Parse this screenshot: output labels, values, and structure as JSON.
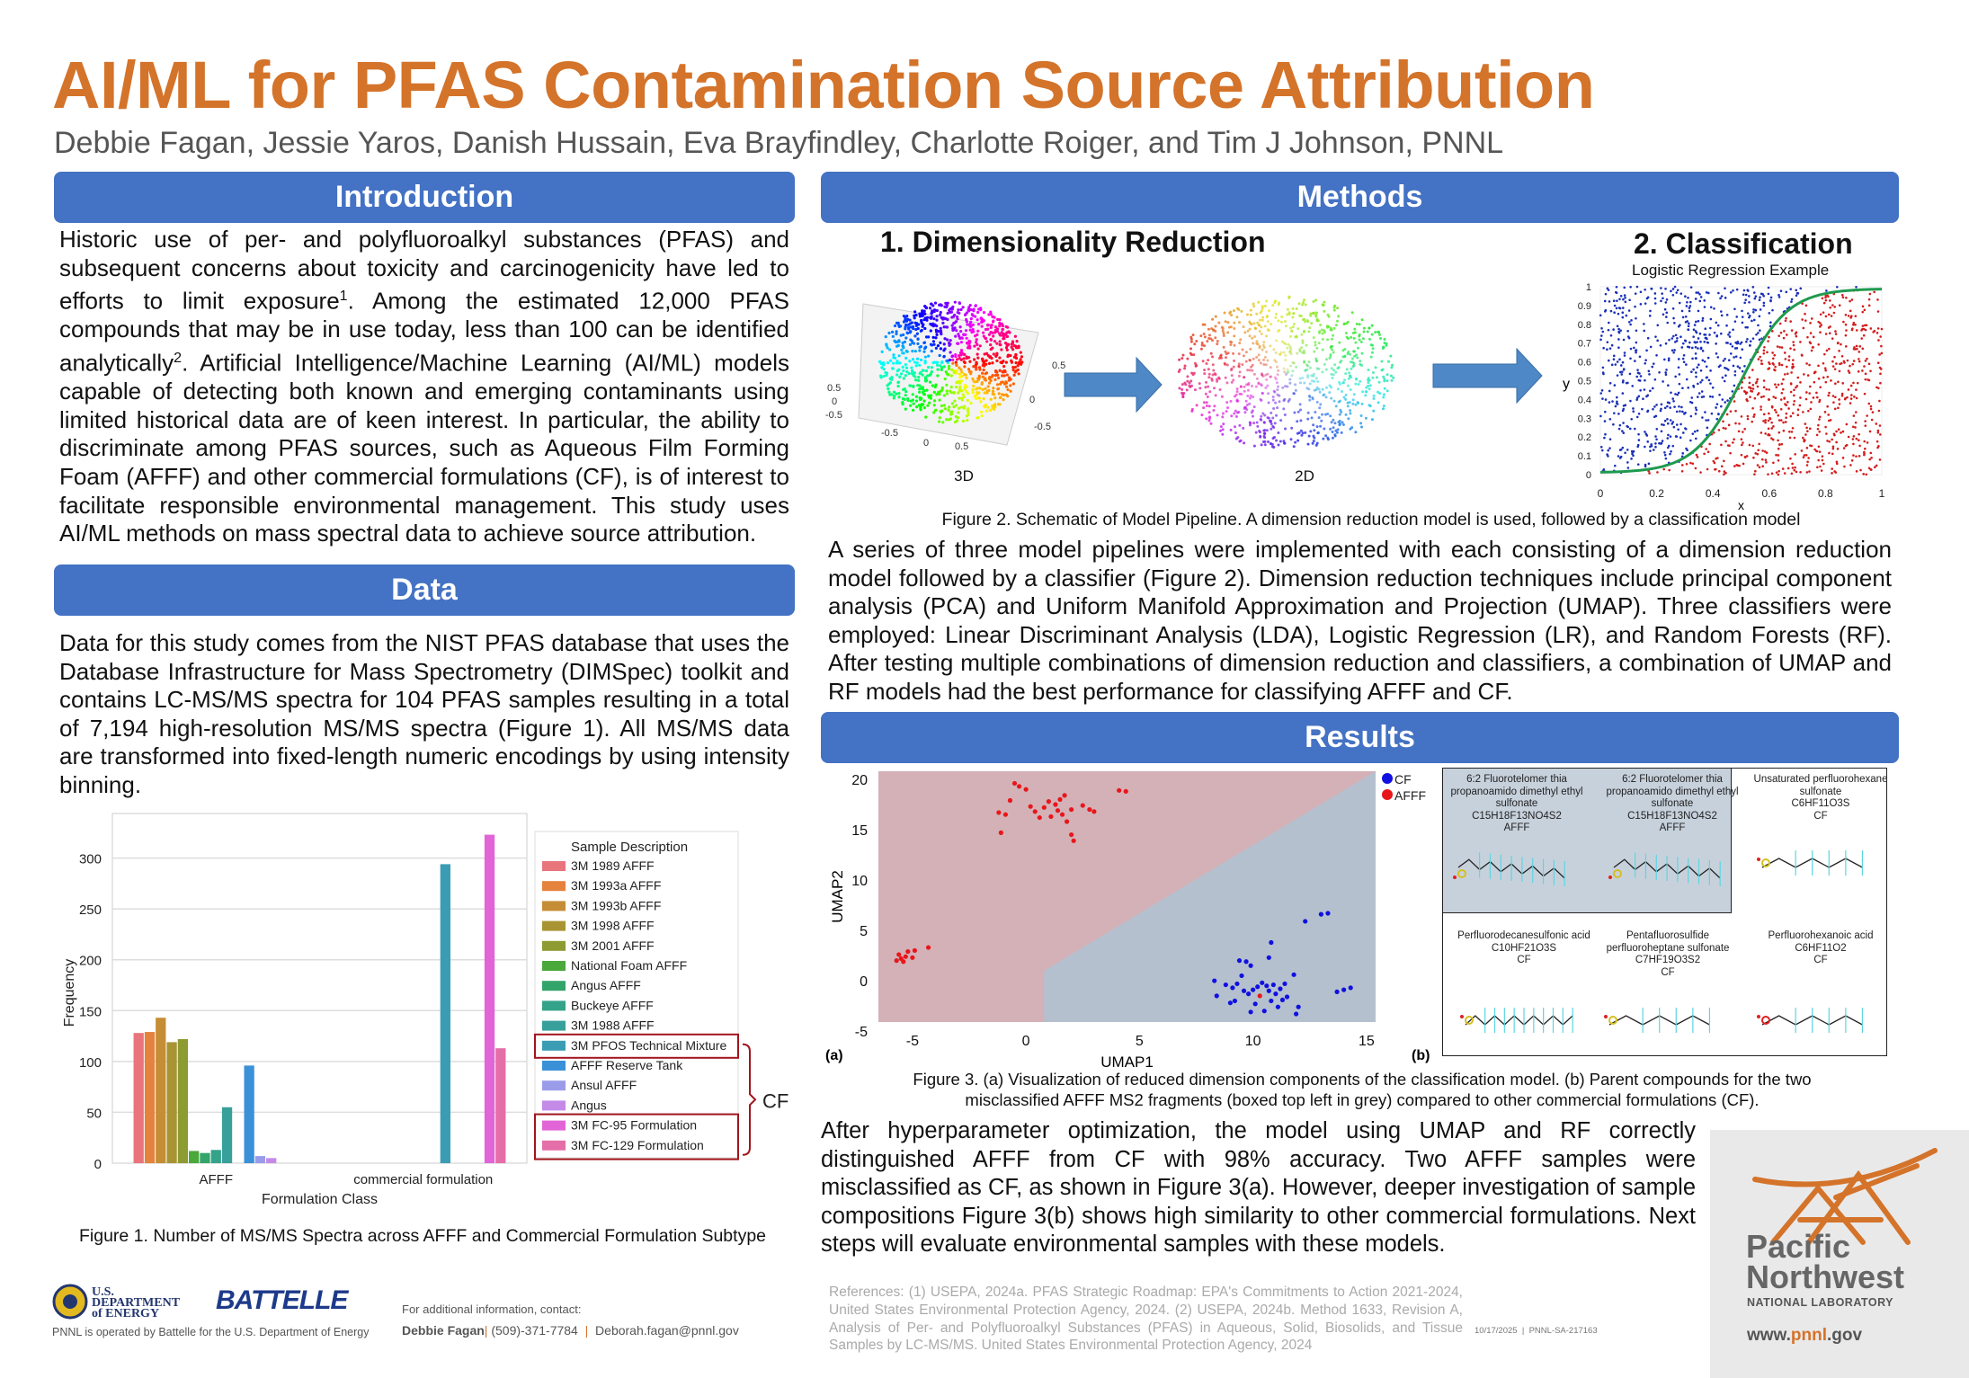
{
  "title": "AI/ML for PFAS Contamination Source Attribution",
  "authors": "Debbie Fagan, Jessie Yaros, Danish Hussain, Eva Brayfindley, Charlotte Roiger, and Tim J Johnson, PNNL",
  "colors": {
    "title": "#D4732A",
    "header": "#4472C4",
    "afff_region": "#D3B1B7",
    "cf_region": "#B5C0CF",
    "afff_point": "#E8161B",
    "cf_point": "#1010E0"
  },
  "introduction": {
    "heading": "Introduction",
    "text_before_1": "Historic use of per- and polyfluoroalkyl substances (PFAS) and subsequent concerns about toxicity and carcinogenicity have led to efforts to limit exposure",
    "sup1": "1",
    "text_before_2": ". Among the estimated 12,000 PFAS compounds that may be in use today, less than 100 can be identified analytically",
    "sup2": "2",
    "text_after": ". Artificial Intelligence/Machine Learning (AI/ML) models capable of detecting both known and emerging contaminants using limited historical data are of keen interest. In particular, the ability to discriminate among PFAS sources, such as Aqueous Film Forming Foam (AFFF) and other commercial formulations (CF), is of interest to facilitate responsible environmental management. This study uses AI/ML methods on mass spectral data to achieve source attribution."
  },
  "data_section": {
    "heading": "Data",
    "text": "Data for this study comes from the NIST PFAS database that uses the Database Infrastructure for Mass Spectrometry (DIMSpec) toolkit and contains LC-MS/MS spectra for 104 PFAS samples resulting in a total of 7,194 high-resolution MS/MS spectra (Figure 1). All MS/MS data are transformed into fixed-length numeric encodings by using intensity binning.",
    "figure_caption": "Figure 1. Number of MS/MS Spectra across AFFF and Commercial Formulation Subtype"
  },
  "methods": {
    "heading": "Methods",
    "step1_title": "1. Dimensionality Reduction",
    "step2_title": "2. Classification",
    "lr_title": "Logistic Regression Example",
    "label_3d": "3D",
    "label_2d": "2D",
    "axis_3d_ticks": [
      "0.5",
      "0",
      "-0.5",
      "-0.5",
      "0",
      "0.5",
      "0.5",
      "0",
      "-0.5"
    ],
    "lr_xlabel": "x",
    "lr_ylabel": "y",
    "lr_xticks": [
      "0",
      "0.2",
      "0.4",
      "0.6",
      "0.8",
      "1"
    ],
    "lr_yticks": [
      "0",
      "0.1",
      "0.2",
      "0.3",
      "0.4",
      "0.5",
      "0.6",
      "0.7",
      "0.8",
      "0.9",
      "1"
    ],
    "figure_caption": "Figure 2. Schematic of Model Pipeline. A dimension reduction model is used, followed by a classification model",
    "text": "A series of three model pipelines were implemented with each consisting of a dimension reduction model followed by a classifier (Figure 2). Dimension reduction techniques include principal component analysis (PCA) and Uniform Manifold Approximation and Projection (UMAP). Three classifiers were employed: Linear Discriminant Analysis (LDA), Logistic Regression (LR), and Random Forests (RF). After testing multiple combinations of dimension reduction and classifiers, a combination of UMAP and RF models had the best performance for classifying AFFF and CF."
  },
  "results": {
    "heading": "Results",
    "panel_a": "(a)",
    "panel_b": "(b)",
    "molecules": [
      {
        "name": "6:2 Fluorotelomer thia propanoamido dimethyl ethyl sulfonate",
        "formula": "C15H18F13NO4S2",
        "class": "AFFF"
      },
      {
        "name": "6:2 Fluorotelomer thia propanoamido dimethyl ethyl sulfonate",
        "formula": "C15H18F13NO4S2",
        "class": "AFFF"
      },
      {
        "name": "Unsaturated perfluorohexane sulfonate",
        "formula": "C6HF11O3S",
        "class": "CF"
      },
      {
        "name": "Perfluorodecanesulfonic acid",
        "formula": "C10HF21O3S",
        "class": "CF"
      },
      {
        "name": "Pentafluorosulfide perfluoroheptane sulfonate",
        "formula": "C7HF19O3S2",
        "class": "CF"
      },
      {
        "name": "Perfluorohexanoic acid",
        "formula": "C6HF11O2",
        "class": "CF"
      }
    ],
    "figure_caption_line1": "Figure 3. (a) Visualization of reduced dimension components of the classification model. (b) Parent compounds for the two",
    "figure_caption_line2": "misclassified AFFF MS2 fragments (boxed top left in grey) compared to other commercial formulations (CF).",
    "text": "After hyperparameter optimization, the model using UMAP and RF correctly distinguished AFFF from CF with 98% accuracy. Two AFFF samples were misclassified as CF, as shown in Figure 3(a). However, deeper investigation of sample compositions Figure 3(b) shows high similarity to other commercial formulations. Next steps will evaluate environmental samples with these models."
  },
  "chart_data": [
    {
      "type": "bar",
      "title": "",
      "xlabel": "Formulation Class",
      "ylabel": "Frequency",
      "categories": [
        "AFFF",
        "commercial formulation"
      ],
      "ylim": [
        0,
        335
      ],
      "yticks": [
        0,
        50,
        100,
        150,
        200,
        250,
        300
      ],
      "grid": true,
      "legend_title": "Sample Description",
      "legend_placement": "right",
      "bracket_label": "CF",
      "series": [
        {
          "name": "3M 1989 AFFF",
          "color": "#E8747C",
          "values": [
            128,
            0
          ],
          "cf_box": false
        },
        {
          "name": "3M 1993a AFFF",
          "color": "#E4823E",
          "values": [
            129,
            0
          ],
          "cf_box": false
        },
        {
          "name": "3M 1993b AFFF",
          "color": "#C58D36",
          "values": [
            143,
            0
          ],
          "cf_box": false
        },
        {
          "name": "3M 1998 AFFF",
          "color": "#A89433",
          "values": [
            119,
            0
          ],
          "cf_box": false
        },
        {
          "name": "3M 2001 AFFF",
          "color": "#8D9B33",
          "values": [
            122,
            0
          ],
          "cf_box": false
        },
        {
          "name": "National Foam AFFF",
          "color": "#4BA83A",
          "values": [
            12,
            0
          ],
          "cf_box": false
        },
        {
          "name": "Angus AFFF",
          "color": "#33A46A",
          "values": [
            10,
            0
          ],
          "cf_box": false
        },
        {
          "name": "Buckeye AFFF",
          "color": "#35A28A",
          "values": [
            13,
            0
          ],
          "cf_box": false
        },
        {
          "name": "3M 1988 AFFF",
          "color": "#37A09B",
          "values": [
            55,
            0
          ],
          "cf_box": false
        },
        {
          "name": "3M PFOS Technical Mixture",
          "color": "#3A9DB4",
          "values": [
            0,
            294
          ],
          "cf_box": true
        },
        {
          "name": "AFFF Reserve Tank",
          "color": "#3B91D8",
          "values": [
            96,
            0
          ],
          "cf_box": false
        },
        {
          "name": "Ansul AFFF",
          "color": "#9A9CEA",
          "values": [
            7,
            0
          ],
          "cf_box": false
        },
        {
          "name": "Angus",
          "color": "#C38AE8",
          "values": [
            5,
            0
          ],
          "cf_box": false
        },
        {
          "name": "3M FC-95 Formulation",
          "color": "#E165D6",
          "values": [
            0,
            323
          ],
          "cf_box": true
        },
        {
          "name": "3M FC-129 Formulation",
          "color": "#E46FA8",
          "values": [
            0,
            113
          ],
          "cf_box": true
        }
      ]
    },
    {
      "type": "scatter",
      "title": "",
      "xlabel": "UMAP1",
      "ylabel": "UMAP2",
      "xlim": [
        -6.5,
        15.4
      ],
      "ylim": [
        -4.1,
        20.8
      ],
      "xticks": [
        -5,
        0,
        5,
        10,
        15
      ],
      "yticks": [
        -5,
        0,
        5,
        10,
        15,
        20
      ],
      "legend_placement": "top-right",
      "decision_boundary": {
        "description": "AFFF region upper-left, CF region lower-right",
        "cf_region_vertices": [
          [
            0.8,
            -4.1
          ],
          [
            0.8,
            1.0
          ],
          [
            15.4,
            20.8
          ],
          [
            15.4,
            -4.1
          ]
        ]
      },
      "series": [
        {
          "name": "CF",
          "points": [
            [
              8.3,
              0
            ],
            [
              8.4,
              -1.5
            ],
            [
              8.8,
              -0.4
            ],
            [
              9.1,
              -0.7
            ],
            [
              9.0,
              -2.2
            ],
            [
              9.4,
              2.0
            ],
            [
              9.7,
              1.9
            ],
            [
              9.5,
              0.5
            ],
            [
              9.6,
              -1.0
            ],
            [
              9.8,
              -1.3
            ],
            [
              10.0,
              -0.9
            ],
            [
              10.2,
              -0.6
            ],
            [
              10.1,
              -2.3
            ],
            [
              9.9,
              -3.1
            ],
            [
              10.4,
              -0.2
            ],
            [
              10.6,
              -0.5
            ],
            [
              10.7,
              -1.0
            ],
            [
              10.8,
              -2.0
            ],
            [
              11.0,
              -1.3
            ],
            [
              11.2,
              -0.8
            ],
            [
              11.4,
              -0.3
            ],
            [
              11.5,
              -1.6
            ],
            [
              11.8,
              0.6
            ],
            [
              12.0,
              -2.6
            ],
            [
              11.9,
              -3.3
            ],
            [
              10.8,
              3.8
            ],
            [
              10.7,
              2.3
            ],
            [
              12.3,
              5.9
            ],
            [
              13.0,
              6.6
            ],
            [
              13.3,
              6.7
            ],
            [
              14.0,
              -0.9
            ],
            [
              14.3,
              -0.7
            ],
            [
              13.7,
              -1.1
            ],
            [
              9.2,
              -2.0
            ],
            [
              10.5,
              -3.0
            ],
            [
              11.1,
              -2.6
            ],
            [
              9.9,
              1.5
            ],
            [
              10.9,
              -0.4
            ],
            [
              11.3,
              -1.9
            ],
            [
              9.3,
              -0.3
            ]
          ]
        },
        {
          "name": "AFFF",
          "points": [
            [
              -5.6,
              2.6
            ],
            [
              -5.5,
              2.2
            ],
            [
              -5.3,
              2.4
            ],
            [
              -5.2,
              2.9
            ],
            [
              -4.9,
              3.0
            ],
            [
              -5.0,
              2.3
            ],
            [
              -4.3,
              3.3
            ],
            [
              -5.7,
              2.0
            ],
            [
              -5.4,
              1.9
            ],
            [
              -0.5,
              19.6
            ],
            [
              -0.3,
              19.3
            ],
            [
              0.0,
              19.0
            ],
            [
              -0.7,
              17.9
            ],
            [
              -1.2,
              16.7
            ],
            [
              -0.9,
              16.5
            ],
            [
              0.2,
              17.3
            ],
            [
              0.4,
              16.8
            ],
            [
              0.8,
              17.2
            ],
            [
              1.0,
              17.8
            ],
            [
              1.3,
              17.5
            ],
            [
              1.5,
              18.0
            ],
            [
              1.7,
              18.4
            ],
            [
              1.4,
              16.9
            ],
            [
              1.6,
              16.5
            ],
            [
              2.0,
              17.0
            ],
            [
              2.5,
              17.4
            ],
            [
              2.8,
              17.0
            ],
            [
              3.0,
              16.8
            ],
            [
              1.8,
              15.8
            ],
            [
              2.0,
              14.5
            ],
            [
              2.1,
              13.9
            ],
            [
              -1.1,
              14.7
            ],
            [
              0.6,
              16.2
            ],
            [
              4.1,
              18.9
            ],
            [
              4.4,
              18.8
            ],
            [
              1.1,
              16.3
            ],
            [
              10.3,
              -1.5
            ]
          ]
        }
      ]
    }
  ],
  "footer": {
    "doe_logo": "U.S. DEPARTMENT of ENERGY",
    "battelle_logo": "BATTELLE",
    "operated_by": "PNNL is operated by Battelle for the U.S. Department of Energy",
    "contact_label": "For additional information, contact:",
    "contact_name": "Debbie Fagan",
    "contact_phone": "(509)-371-7784",
    "contact_email": "Deborah.fagan@pnnl.gov",
    "references": "References: (1) USEPA, 2024a. PFAS Strategic Roadmap: EPA's Commitments to Action 2021-2024, United States Environmental Protection Agency, 2024. (2) USEPA, 2024b. Method 1633, Revision A, Analysis of Per- and Polyfluoroalkyl Substances (PFAS) in Aqueous, Solid, Biosolids, and Tissue Samples by LC-MS/MS. United States Environmental Protection Agency, 2024",
    "date": "10/17/2025",
    "doc_number": "PNNL-SA-217163",
    "pnnl_line1": "Pacific",
    "pnnl_line2": "Northwest",
    "pnnl_line3": "NATIONAL LABORATORY",
    "url_prefix": "www.",
    "url_mid": "pnnl",
    "url_suffix": ".gov"
  }
}
